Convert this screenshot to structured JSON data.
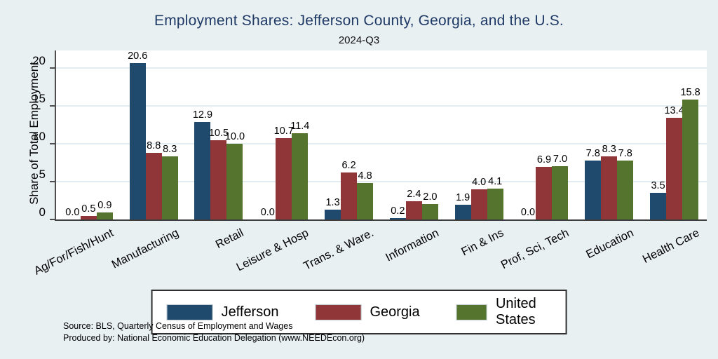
{
  "title": "Employment Shares: Jefferson County, Georgia, and the U.S.",
  "subtitle": "2024-Q3",
  "ylabel": "Share of Total Employment",
  "footer": {
    "source": "Source: BLS, Quarterly Census of Employment and Wages",
    "produced_by": "Produced by: National Economic Education Delegation (www.NEEDEcon.org)"
  },
  "colors": {
    "background": "#e9f0f2",
    "plot_background": "#ffffff",
    "title_text": "#203a66",
    "gridline": "#e3edf1",
    "axis_line": "#4d4d4d",
    "jefferson_blue": "#1f4a6e",
    "georgia_red": "#903639",
    "us_green": "#55752e"
  },
  "chart_data": {
    "type": "bar",
    "title": "Employment Shares: Jefferson County, Georgia, and the U.S.",
    "subtitle": "2024-Q3",
    "ylabel": "Share of Total Employment",
    "xlabel": "",
    "grid": true,
    "legend_position": "bottom",
    "value_labels": true,
    "yticks": [
      0,
      5,
      10,
      15,
      20
    ],
    "ylim": [
      0,
      22.3
    ],
    "categories": [
      "Ag/For/Fish/Hunt",
      "Manufacturing",
      "Retail",
      "Leisure & Hosp",
      "Trans. & Ware.",
      "Information",
      "Fin & Ins",
      "Prof, Sci, Tech",
      "Education",
      "Health Care"
    ],
    "series": [
      {
        "name": "Jefferson",
        "color": "#1f4a6e",
        "values": [
          0.0,
          20.6,
          12.9,
          0.0,
          1.3,
          0.2,
          1.9,
          0.0,
          7.8,
          3.5
        ]
      },
      {
        "name": "Georgia",
        "color": "#903639",
        "values": [
          0.5,
          8.8,
          10.5,
          10.7,
          6.2,
          2.4,
          4.0,
          6.9,
          8.3,
          13.4
        ]
      },
      {
        "name": "United States",
        "color": "#55752e",
        "values": [
          0.9,
          8.3,
          10.0,
          11.4,
          4.8,
          2.0,
          4.1,
          7.0,
          7.8,
          15.8
        ]
      }
    ]
  }
}
